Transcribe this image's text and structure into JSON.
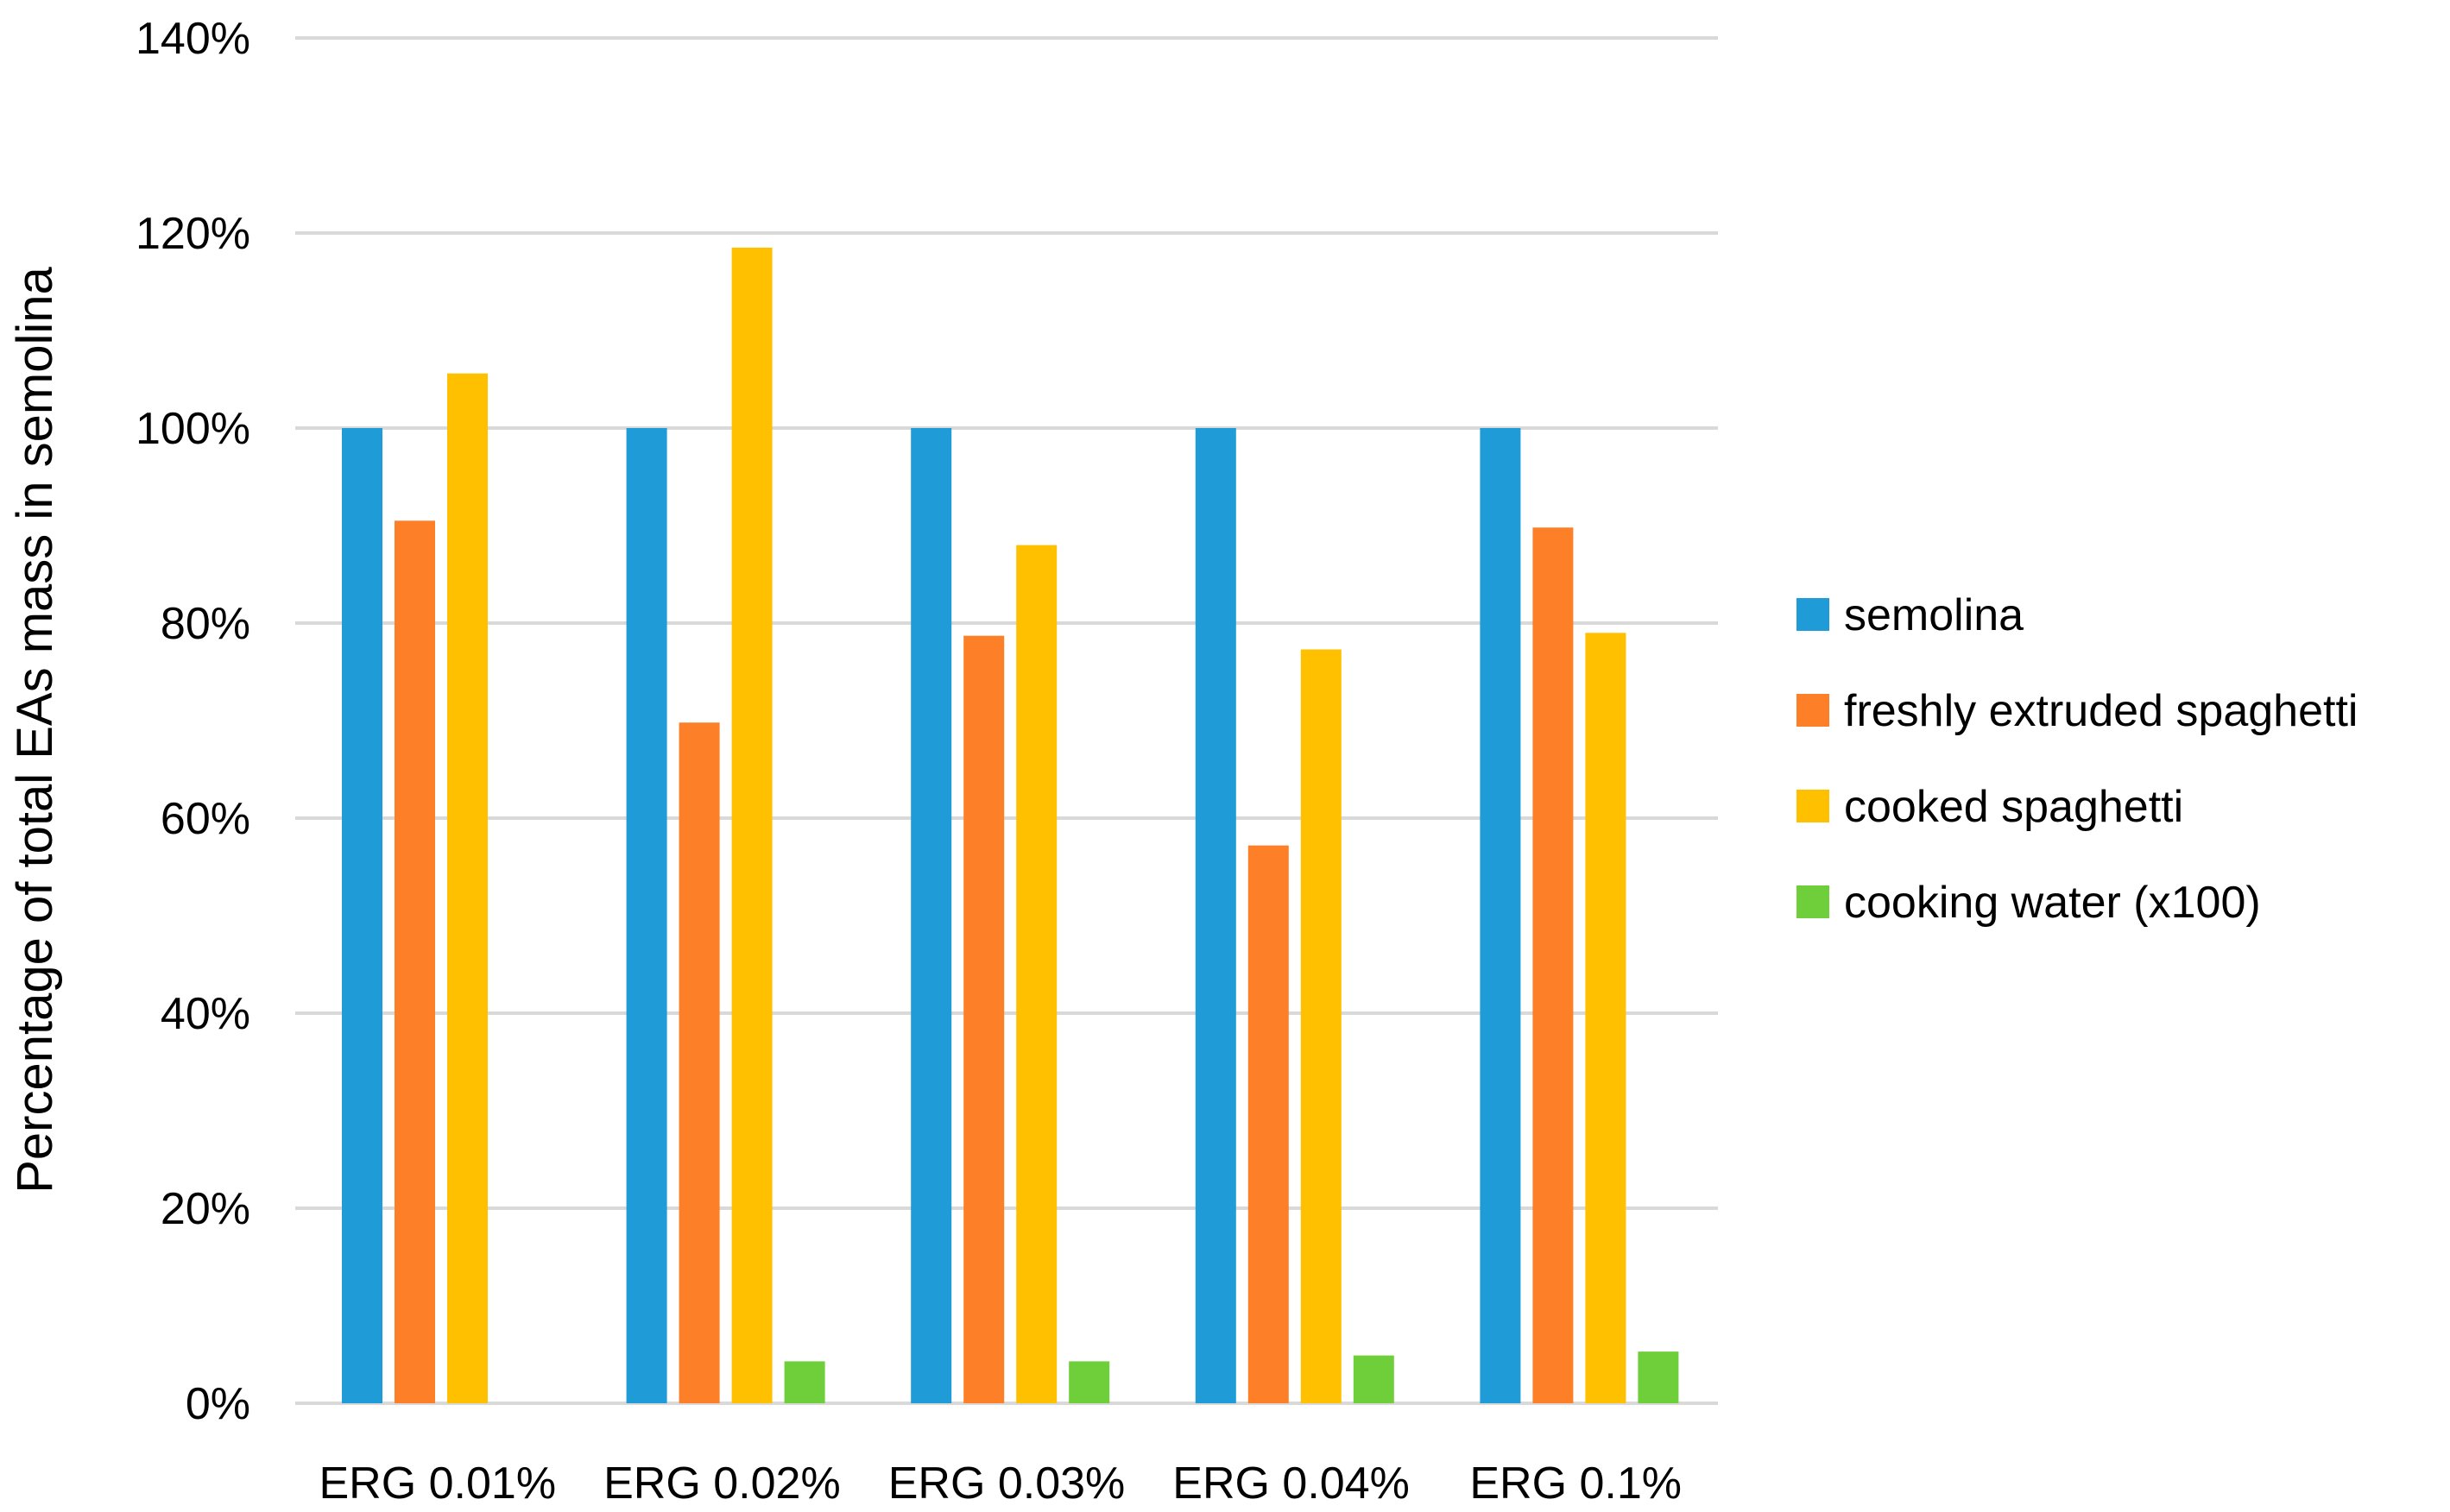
{
  "chart_data": {
    "type": "bar",
    "title": "",
    "xlabel": "",
    "ylabel": "Percentage of total EAs mass in semolina",
    "ylim": [
      0,
      140
    ],
    "y_ticks": [
      "0%",
      "20%",
      "40%",
      "60%",
      "80%",
      "100%",
      "120%",
      "140%"
    ],
    "y_tick_values": [
      0,
      20,
      40,
      60,
      80,
      100,
      120,
      140
    ],
    "grid": true,
    "legend_position": "right",
    "categories": [
      "ERG 0.01%",
      "ERG 0.02%",
      "ERG 0.03%",
      "ERG 0.04%",
      "ERG 0.1%"
    ],
    "series": [
      {
        "name": "semolina",
        "color": "#1f9bd7",
        "values": [
          100,
          100,
          100,
          100,
          100
        ]
      },
      {
        "name": "freshly extruded spaghetti",
        "color": "#fd7f27",
        "values": [
          90.5,
          69.8,
          78.7,
          57.2,
          89.8
        ]
      },
      {
        "name": "cooked spaghetti",
        "color": "#ffc000",
        "values": [
          105.6,
          118.5,
          88.0,
          77.3,
          79.0
        ]
      },
      {
        "name": "cooking water (x100)",
        "color": "#6fcf3a",
        "values": [
          0,
          4.3,
          4.3,
          4.9,
          5.3
        ]
      }
    ]
  }
}
